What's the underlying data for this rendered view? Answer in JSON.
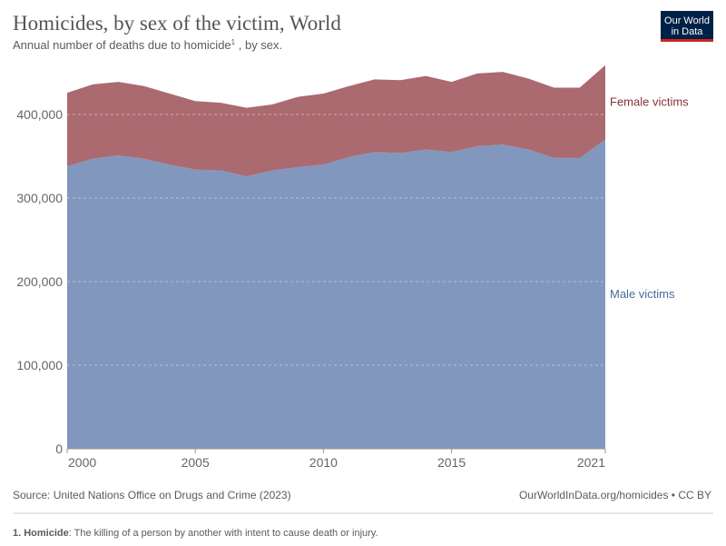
{
  "chart_data": {
    "type": "stacked-area",
    "title": "Homicides, by sex of the victim, World",
    "subtitle": "Annual number of deaths due to homicide",
    "subtitle_note": "1",
    "subtitle_end": " , by sex.",
    "logo": [
      "Our World",
      "in Data"
    ],
    "x": [
      2000,
      2001,
      2002,
      2003,
      2004,
      2005,
      2006,
      2007,
      2008,
      2009,
      2010,
      2011,
      2012,
      2013,
      2014,
      2015,
      2016,
      2017,
      2018,
      2019,
      2020,
      2021
    ],
    "series": [
      {
        "name": "Male victims",
        "color": "#8197bd",
        "label_color": "#4b6a9d",
        "values": [
          338000,
          347000,
          351000,
          347000,
          340000,
          334000,
          333000,
          326000,
          333000,
          337000,
          340000,
          349000,
          355000,
          354000,
          358000,
          355000,
          362000,
          364000,
          358000,
          348000,
          348000,
          370000
        ]
      },
      {
        "name": "Female victims",
        "color": "#ab6a70",
        "label_color": "#883039",
        "values": [
          88000,
          89000,
          88000,
          87000,
          85000,
          82000,
          81000,
          82000,
          79000,
          84000,
          85000,
          85000,
          87000,
          87000,
          88000,
          84000,
          87000,
          87000,
          85000,
          84000,
          84000,
          89000
        ]
      }
    ],
    "xlim": [
      2000,
      2021
    ],
    "xticks": [
      2000,
      2005,
      2010,
      2015,
      2021
    ],
    "ylim": [
      0,
      460000
    ],
    "yticks": [
      0,
      {
        "value": 100000,
        "label": "100,000"
      },
      {
        "value": 200000,
        "label": "200,000"
      },
      {
        "value": 300000,
        "label": "300,000"
      },
      {
        "value": 400000,
        "label": "400,000"
      }
    ],
    "grid": true,
    "source": "Source: United Nations Office on Drugs and Crime (2023)",
    "url": "OurWorldInData.org/homicides • CC BY",
    "footnote_term": "1. Homicide",
    "footnote_text": ": The killing of a person by another with intent to cause death or injury."
  }
}
